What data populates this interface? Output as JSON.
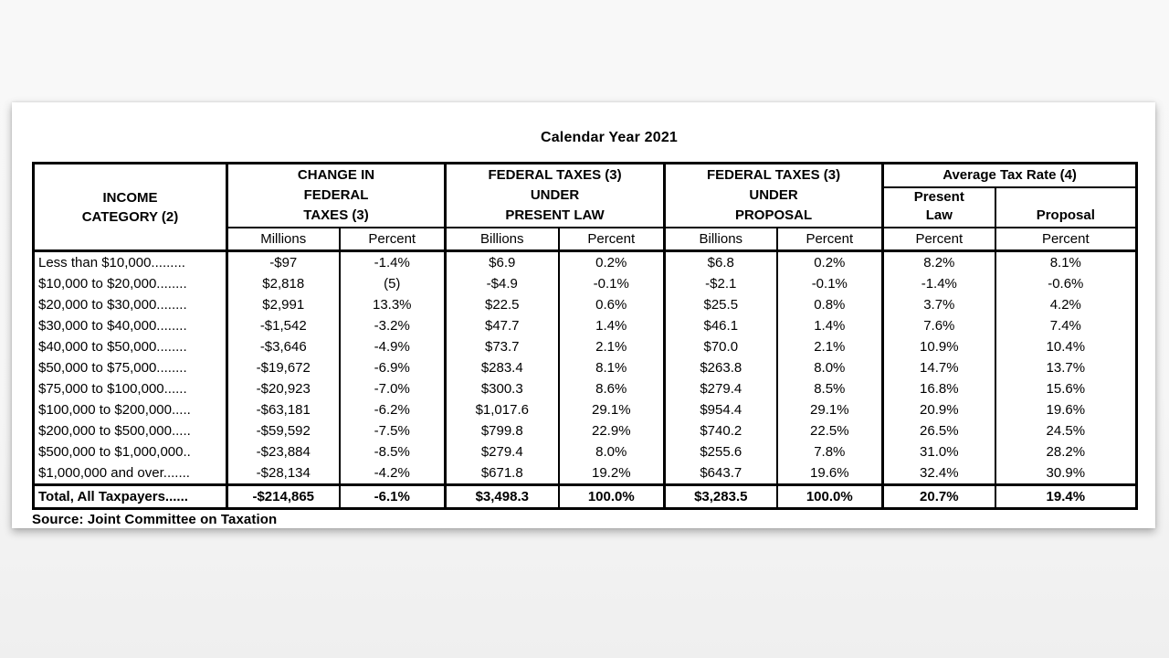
{
  "page": {
    "title": "Calendar Year 2021",
    "source": "Source:  Joint Committee on Taxation"
  },
  "table": {
    "income_header": {
      "lines": [
        "INCOME",
        "CATEGORY (2)"
      ]
    },
    "groups": [
      {
        "title_lines": [
          "CHANGE IN",
          "FEDERAL",
          "TAXES (3)"
        ]
      },
      {
        "title_lines": [
          "FEDERAL TAXES (3)",
          "UNDER",
          "PRESENT LAW"
        ]
      },
      {
        "title_lines": [
          "FEDERAL TAXES (3)",
          "UNDER",
          "PROPOSAL"
        ]
      },
      {
        "title": "Average Tax Rate (4)",
        "sub": [
          {
            "lines": [
              "Present",
              "Law"
            ]
          },
          {
            "lines": [
              "Proposal"
            ]
          }
        ]
      }
    ],
    "subheaders": [
      "Millions",
      "Percent",
      "Billions",
      "Percent",
      "Billions",
      "Percent",
      "Percent",
      "Percent"
    ],
    "rows": [
      {
        "label": "Less than $10,000.........",
        "cells": [
          "-$97",
          "-1.4%",
          "$6.9",
          "0.2%",
          "$6.8",
          "0.2%",
          "8.2%",
          "8.1%"
        ]
      },
      {
        "label": "$10,000 to $20,000........",
        "cells": [
          "$2,818",
          "(5)",
          "-$4.9",
          "-0.1%",
          "-$2.1",
          "-0.1%",
          "-1.4%",
          "-0.6%"
        ]
      },
      {
        "label": "$20,000 to $30,000........",
        "cells": [
          "$2,991",
          "13.3%",
          "$22.5",
          "0.6%",
          "$25.5",
          "0.8%",
          "3.7%",
          "4.2%"
        ]
      },
      {
        "label": "$30,000 to $40,000........",
        "cells": [
          "-$1,542",
          "-3.2%",
          "$47.7",
          "1.4%",
          "$46.1",
          "1.4%",
          "7.6%",
          "7.4%"
        ]
      },
      {
        "label": "$40,000 to $50,000........",
        "cells": [
          "-$3,646",
          "-4.9%",
          "$73.7",
          "2.1%",
          "$70.0",
          "2.1%",
          "10.9%",
          "10.4%"
        ]
      },
      {
        "label": "$50,000 to $75,000........",
        "cells": [
          "-$19,672",
          "-6.9%",
          "$283.4",
          "8.1%",
          "$263.8",
          "8.0%",
          "14.7%",
          "13.7%"
        ]
      },
      {
        "label": "$75,000 to $100,000......",
        "cells": [
          "-$20,923",
          "-7.0%",
          "$300.3",
          "8.6%",
          "$279.4",
          "8.5%",
          "16.8%",
          "15.6%"
        ]
      },
      {
        "label": "$100,000 to $200,000.....",
        "cells": [
          "-$63,181",
          "-6.2%",
          "$1,017.6",
          "29.1%",
          "$954.4",
          "29.1%",
          "20.9%",
          "19.6%"
        ]
      },
      {
        "label": "$200,000 to $500,000.....",
        "cells": [
          "-$59,592",
          "-7.5%",
          "$799.8",
          "22.9%",
          "$740.2",
          "22.5%",
          "26.5%",
          "24.5%"
        ]
      },
      {
        "label": "$500,000 to $1,000,000..",
        "cells": [
          "-$23,884",
          "-8.5%",
          "$279.4",
          "8.0%",
          "$255.6",
          "7.8%",
          "31.0%",
          "28.2%"
        ]
      },
      {
        "label": "$1,000,000 and over.......",
        "cells": [
          "-$28,134",
          "-4.2%",
          "$671.8",
          "19.2%",
          "$643.7",
          "19.6%",
          "32.4%",
          "30.9%"
        ]
      }
    ],
    "total": {
      "label": "Total, All Taxpayers......",
      "cells": [
        "-$214,865",
        "-6.1%",
        "$3,498.3",
        "100.0%",
        "$3,283.5",
        "100.0%",
        "20.7%",
        "19.4%"
      ]
    }
  }
}
